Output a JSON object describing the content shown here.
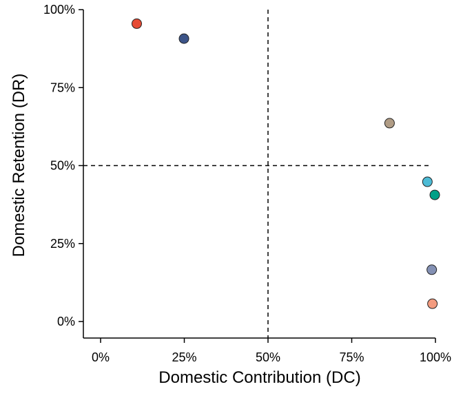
{
  "chart_data": {
    "type": "scatter",
    "title": "",
    "xlabel": "Domestic Contribution (DC)",
    "ylabel": "Domestic Retention (DR)",
    "xlim": [
      0,
      100
    ],
    "ylim": [
      0,
      100
    ],
    "x_ticks": [
      {
        "value": 0,
        "label": "0%"
      },
      {
        "value": 25,
        "label": "25%"
      },
      {
        "value": 50,
        "label": "50%"
      },
      {
        "value": 75,
        "label": "75%"
      },
      {
        "value": 100,
        "label": "100%"
      }
    ],
    "y_ticks": [
      {
        "value": 0,
        "label": "0%"
      },
      {
        "value": 25,
        "label": "25%"
      },
      {
        "value": 50,
        "label": "50%"
      },
      {
        "value": 75,
        "label": "75%"
      },
      {
        "value": 100,
        "label": "100%"
      }
    ],
    "reference_lines": {
      "x": 50,
      "y": 50,
      "style": "dashed"
    },
    "grid": false,
    "legend": "none",
    "points": [
      {
        "x": 10.8,
        "y": 95.5,
        "color": "#e64b35"
      },
      {
        "x": 24.9,
        "y": 90.7,
        "color": "#3c5488"
      },
      {
        "x": 86.3,
        "y": 63.6,
        "color": "#b09c85"
      },
      {
        "x": 97.6,
        "y": 44.8,
        "color": "#4dbbd5"
      },
      {
        "x": 99.8,
        "y": 40.6,
        "color": "#00a087"
      },
      {
        "x": 98.9,
        "y": 16.6,
        "color": "#8491b4"
      },
      {
        "x": 99.1,
        "y": 5.7,
        "color": "#f39b7f"
      }
    ]
  }
}
